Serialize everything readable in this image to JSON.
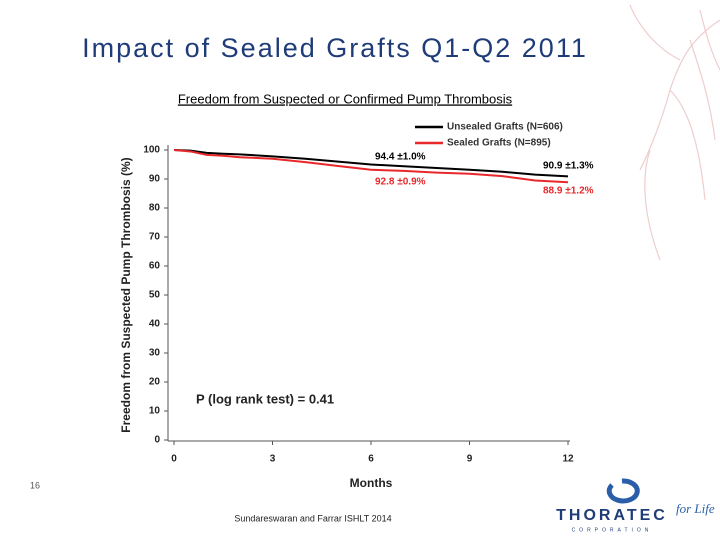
{
  "slide": {
    "title": "Impact of Sealed Grafts Q1-Q2 2011",
    "page_number": "16",
    "footer": "Sundareswaran and Farrar ISHLT 2014",
    "logo": {
      "name": "THORATEC",
      "subname": "CORPORATION",
      "tagline": "for Life"
    }
  },
  "chart_data": {
    "type": "line",
    "subtitle": "Freedom from Suspected or Confirmed Pump Thrombosis",
    "y_label": "Freedom from Suspected Pump Thrombosis (%)",
    "x_label": "Months",
    "x": [
      0,
      0.5,
      1,
      1.5,
      2,
      3,
      4,
      5,
      6,
      7,
      8,
      9,
      10,
      11,
      12
    ],
    "series": [
      {
        "name": "Unsealed Grafts (N=606)",
        "color": "#000000",
        "values": [
          100,
          99.8,
          99,
          98.7,
          98.5,
          97.8,
          97,
          96,
          95,
          94.4,
          93.8,
          93.2,
          92.5,
          91.5,
          90.9
        ],
        "annotations": [
          "94.4 ±1.0%",
          "90.9 ±1.3%"
        ]
      },
      {
        "name": "Sealed Grafts (N=895)",
        "color": "#e8282b",
        "values": [
          100,
          99.5,
          98.3,
          98,
          97.5,
          97,
          95.8,
          94.5,
          93.2,
          92.8,
          92.2,
          91.8,
          91,
          89.5,
          88.9
        ],
        "annotations": [
          "92.8 ±0.9%",
          "88.9 ±1.2%"
        ]
      }
    ],
    "note": "P (log rank test) = 0.41",
    "xlim": [
      0,
      12
    ],
    "xticks": [
      0,
      3,
      6,
      9,
      12
    ],
    "ylim": [
      0,
      100
    ],
    "yticks": [
      0,
      10,
      20,
      30,
      40,
      50,
      60,
      70,
      80,
      90,
      100
    ],
    "grid": false,
    "legend": "top-right"
  }
}
